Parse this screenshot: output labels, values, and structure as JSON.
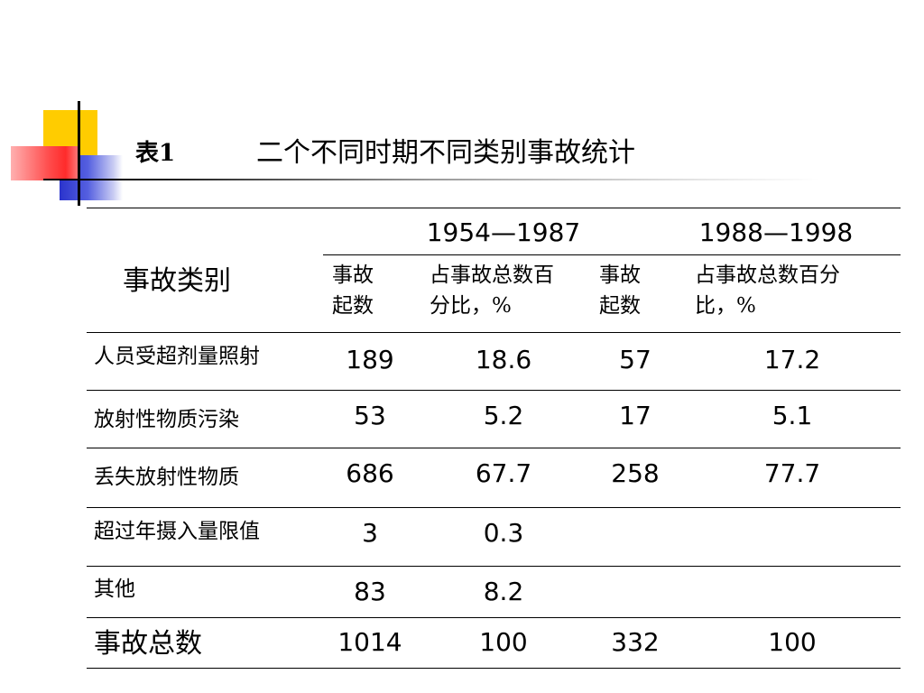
{
  "title": {
    "number": "表1",
    "text": "二个不同时期不同类别事故统计"
  },
  "table": {
    "category_header": "事故类别",
    "periods": [
      "1954—1987",
      "1988—1998"
    ],
    "subheaders": [
      "事故起数",
      "占事故总数百分比，%",
      "事故起数",
      "占事故总数百分比，%"
    ],
    "rows": [
      {
        "label": "人员受超剂量照射",
        "values": [
          "189",
          "18.6",
          "57",
          "17.2"
        ]
      },
      {
        "label": "放射性物质污染",
        "values": [
          "53",
          "5.2",
          "17",
          "5.1"
        ]
      },
      {
        "label": "丢失放射性物质",
        "values": [
          "686",
          "67.7",
          "258",
          "77.7"
        ]
      },
      {
        "label": "超过年摄入量限值",
        "values": [
          "3",
          "0.3",
          "",
          ""
        ]
      },
      {
        "label": "其他",
        "values": [
          "83",
          "8.2",
          "",
          ""
        ]
      }
    ],
    "total": {
      "label": "事故总数",
      "values": [
        "1014",
        "100",
        "332",
        "100"
      ]
    }
  }
}
